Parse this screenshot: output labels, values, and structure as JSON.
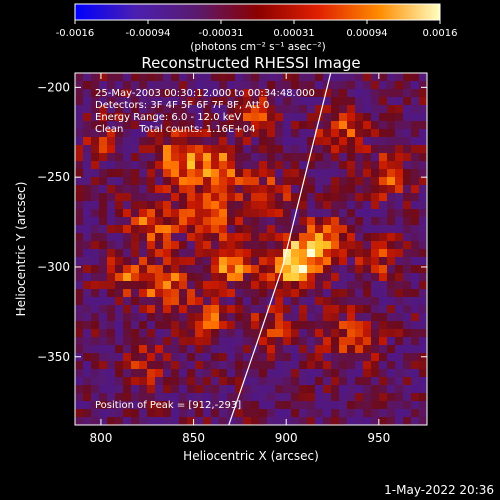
{
  "chart_data": {
    "type": "heatmap",
    "title": "Reconstructed RHESSI Image",
    "xlabel": "Heliocentric X (arcsec)",
    "ylabel": "Heliocentric Y (arcsec)",
    "xlim": [
      786,
      976
    ],
    "ylim": [
      -388,
      -192
    ],
    "x_ticks": [
      800,
      850,
      900,
      950
    ],
    "y_ticks": [
      -200,
      -250,
      -300,
      -350
    ],
    "colorbar": {
      "min": -0.0016,
      "max": 0.0016,
      "ticks": [
        "-0.0016",
        "-0.00094",
        "-0.00031",
        "0.00031",
        "0.00094",
        "0.0016"
      ],
      "unit_label": "(photons cm⁻² s⁻¹ asec⁻²)",
      "colors": [
        "#0000ff",
        "#4b1fb0",
        "#5a1a6e",
        "#8b0000",
        "#e02000",
        "#ff8c00",
        "#ffffc0"
      ]
    },
    "annotations": [
      "25-May-2003 00:30:12.000 to 00:34:48.000",
      "Detectors: 3F 4F 5F 6F 7F 8F, Att 0",
      "Energy Range: 6.0 - 12.0 keV",
      "Clean     Total counts: 1.16E+04"
    ],
    "peak_label": "Position of Peak = [912,-293]",
    "peak": {
      "x": 912,
      "y": -293
    },
    "limb_curve": [
      {
        "x": 869,
        "y": -388
      },
      {
        "x": 885,
        "y": -340
      },
      {
        "x": 898,
        "y": -300
      },
      {
        "x": 910,
        "y": -250
      },
      {
        "x": 924,
        "y": -192
      }
    ],
    "hotspots": [
      {
        "x": 905,
        "y": -298,
        "amp": 1.15,
        "r": 14
      },
      {
        "x": 920,
        "y": -285,
        "amp": 0.8,
        "r": 12
      },
      {
        "x": 843,
        "y": -240,
        "amp": 0.85,
        "r": 14
      },
      {
        "x": 865,
        "y": -245,
        "amp": 0.7,
        "r": 12
      },
      {
        "x": 858,
        "y": -270,
        "amp": 0.75,
        "r": 14
      },
      {
        "x": 828,
        "y": -275,
        "amp": 0.7,
        "r": 14
      },
      {
        "x": 812,
        "y": -305,
        "amp": 0.55,
        "r": 12
      },
      {
        "x": 835,
        "y": -310,
        "amp": 0.7,
        "r": 14
      },
      {
        "x": 870,
        "y": -300,
        "amp": 0.75,
        "r": 12
      },
      {
        "x": 858,
        "y": -330,
        "amp": 0.6,
        "r": 12
      },
      {
        "x": 892,
        "y": -335,
        "amp": 0.55,
        "r": 12
      },
      {
        "x": 935,
        "y": -340,
        "amp": 0.6,
        "r": 14
      },
      {
        "x": 950,
        "y": -295,
        "amp": 0.55,
        "r": 12
      },
      {
        "x": 930,
        "y": -225,
        "amp": 0.6,
        "r": 12
      },
      {
        "x": 955,
        "y": -250,
        "amp": 0.55,
        "r": 14
      },
      {
        "x": 882,
        "y": -215,
        "amp": 0.55,
        "r": 12
      },
      {
        "x": 825,
        "y": -355,
        "amp": 0.45,
        "r": 12
      },
      {
        "x": 800,
        "y": -230,
        "amp": 0.4,
        "r": 12
      },
      {
        "x": 890,
        "y": -260,
        "amp": 0.6,
        "r": 12
      }
    ],
    "grid": false
  },
  "footer": {
    "timestamp": "1-May-2022 20:36"
  }
}
